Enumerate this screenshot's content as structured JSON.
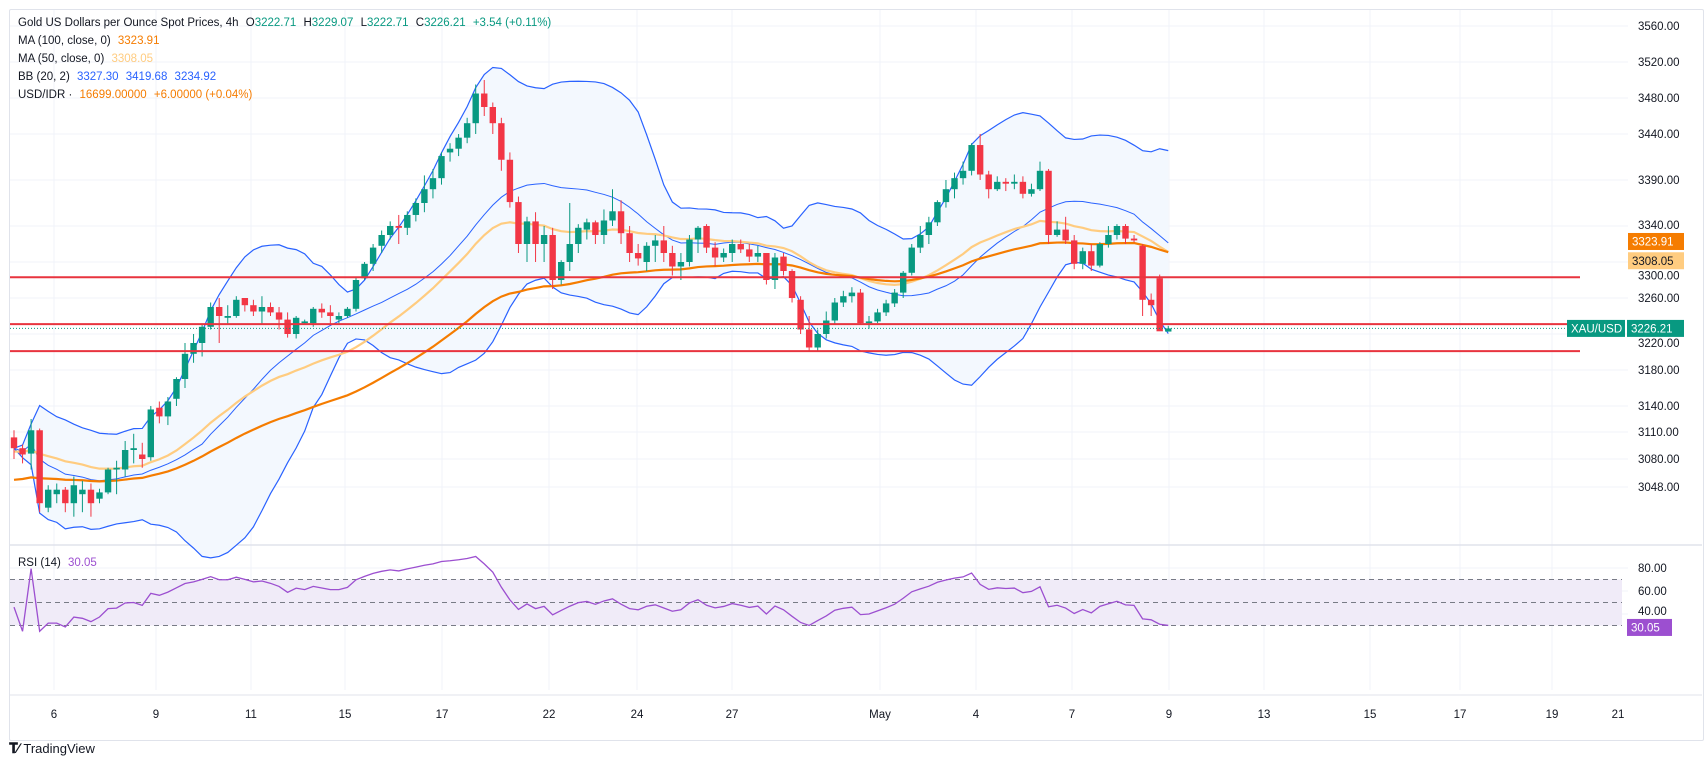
{
  "header": {
    "symbol_title": "Gold US Dollars per Ounce Spot Prices, 4h",
    "open_label": "O",
    "open": "3222.71",
    "high_label": "H",
    "high": "3229.07",
    "low_label": "L",
    "low": "3222.71",
    "close_label": "C",
    "close": "3226.21",
    "change": "+3.54 (+0.11%)"
  },
  "indicators": {
    "ma100": {
      "label": "MA (100, close, 0)",
      "value": "3323.91",
      "color": "#f57c00"
    },
    "ma50": {
      "label": "MA (50, close, 0)",
      "value": "3308.05",
      "color": "#ffcc80"
    },
    "bb": {
      "label": "BB (20, 2)",
      "basis": "3327.30",
      "upper": "3419.68",
      "lower": "3234.92",
      "color": "#2962ff"
    },
    "usdidr": {
      "label": "USD/IDR ·",
      "value": "16699.00000",
      "change": "+6.00000 (+0.04%)",
      "color": "#f57c00"
    },
    "rsi": {
      "label": "RSI (14)",
      "value": "30.05",
      "color": "#9c4fd0"
    }
  },
  "price_labels": {
    "ma100": "3323.91",
    "ma50": "3308.05",
    "symbol_tag": "XAU/USD",
    "last_price": "3226.21",
    "rsi_last": "30.05"
  },
  "colors": {
    "up": "#089981",
    "down": "#f23645",
    "ma100": "#f57c00",
    "ma50": "#ffcc80",
    "bb": "#2962ff",
    "bb_fill": "#f3f8fe",
    "rsi": "#9c4fd0",
    "rsi_band": "#f0ebf8",
    "hline": "#e8343f"
  },
  "footer": {
    "brand": "TradingView"
  },
  "chart_data": [
    {
      "type": "candlestick",
      "title": "Gold US Dollars per Ounce Spot Prices, 4h",
      "y_ticks": [
        3560,
        3520,
        3480,
        3440,
        3390,
        3340,
        3300,
        3260,
        3220,
        3180,
        3140,
        3110,
        3080,
        3048
      ],
      "y_tick_labels": [
        "3560.00",
        "3520.00",
        "3480.00",
        "3440.00",
        "3390.00",
        "3340.00",
        "3300.00",
        "3260.00",
        "3220.00",
        "3180.00",
        "3140.00",
        "3110.00",
        "3080.00",
        "3048.00"
      ],
      "x_tick_labels": [
        "6",
        "9",
        "11",
        "15",
        "17",
        "22",
        "24",
        "27",
        "May",
        "4",
        "7",
        "9",
        "13",
        "15",
        "17",
        "19",
        "21"
      ],
      "horizontal_lines": [
        3283,
        3231,
        3201
      ],
      "ohlc": [
        [
          3104,
          3112,
          3080,
          3092
        ],
        [
          3092,
          3096,
          3075,
          3085
        ],
        [
          3086,
          3125,
          3068,
          3112
        ],
        [
          3112,
          3114,
          3020,
          3030
        ],
        [
          3025,
          3050,
          3020,
          3045
        ],
        [
          3040,
          3052,
          3030,
          3045
        ],
        [
          3045,
          3048,
          3020,
          3030
        ],
        [
          3030,
          3060,
          3015,
          3050
        ],
        [
          3040,
          3055,
          3020,
          3045
        ],
        [
          3045,
          3052,
          3015,
          3030
        ],
        [
          3035,
          3046,
          3030,
          3042
        ],
        [
          3042,
          3070,
          3040,
          3068
        ],
        [
          3068,
          3078,
          3040,
          3070
        ],
        [
          3068,
          3100,
          3060,
          3090
        ],
        [
          3090,
          3108,
          3075,
          3092
        ],
        [
          3085,
          3098,
          3070,
          3080
        ],
        [
          3082,
          3140,
          3078,
          3136
        ],
        [
          3138,
          3145,
          3120,
          3128
        ],
        [
          3128,
          3150,
          3118,
          3145
        ],
        [
          3148,
          3172,
          3140,
          3170
        ],
        [
          3170,
          3210,
          3160,
          3198
        ],
        [
          3198,
          3220,
          3188,
          3210
        ],
        [
          3210,
          3230,
          3195,
          3228
        ],
        [
          3228,
          3255,
          3225,
          3250
        ],
        [
          3250,
          3260,
          3210,
          3240
        ],
        [
          3238,
          3252,
          3230,
          3240
        ],
        [
          3240,
          3262,
          3238,
          3258
        ],
        [
          3260,
          3258,
          3245,
          3252
        ],
        [
          3252,
          3258,
          3240,
          3245
        ],
        [
          3245,
          3262,
          3230,
          3250
        ],
        [
          3250,
          3255,
          3240,
          3244
        ],
        [
          3244,
          3250,
          3225,
          3236
        ],
        [
          3236,
          3244,
          3216,
          3220
        ],
        [
          3220,
          3240,
          3215,
          3238
        ],
        [
          3232,
          3236,
          3230,
          3234
        ],
        [
          3232,
          3250,
          3228,
          3248
        ],
        [
          3248,
          3254,
          3238,
          3244
        ],
        [
          3244,
          3252,
          3230,
          3240
        ],
        [
          3236,
          3244,
          3232,
          3240
        ],
        [
          3240,
          3250,
          3238,
          3248
        ],
        [
          3248,
          3283,
          3245,
          3280
        ],
        [
          3282,
          3300,
          3280,
          3298
        ],
        [
          3298,
          3320,
          3290,
          3316
        ],
        [
          3318,
          3335,
          3310,
          3330
        ],
        [
          3330,
          3345,
          3325,
          3340
        ],
        [
          3340,
          3352,
          3320,
          3338
        ],
        [
          3338,
          3356,
          3330,
          3352
        ],
        [
          3352,
          3370,
          3345,
          3365
        ],
        [
          3365,
          3395,
          3355,
          3380
        ],
        [
          3380,
          3402,
          3370,
          3392
        ],
        [
          3392,
          3420,
          3385,
          3416
        ],
        [
          3420,
          3430,
          3410,
          3424
        ],
        [
          3424,
          3440,
          3416,
          3436
        ],
        [
          3436,
          3458,
          3430,
          3452
        ],
        [
          3452,
          3495,
          3440,
          3485
        ],
        [
          3485,
          3500,
          3460,
          3470
        ],
        [
          3470,
          3475,
          3440,
          3452
        ],
        [
          3452,
          3458,
          3400,
          3412
        ],
        [
          3412,
          3420,
          3360,
          3366
        ],
        [
          3366,
          3372,
          3310,
          3320
        ],
        [
          3320,
          3350,
          3300,
          3345
        ],
        [
          3345,
          3355,
          3300,
          3320
        ],
        [
          3320,
          3340,
          3300,
          3330
        ],
        [
          3330,
          3338,
          3270,
          3280
        ],
        [
          3280,
          3302,
          3275,
          3300
        ],
        [
          3300,
          3365,
          3290,
          3320
        ],
        [
          3320,
          3342,
          3310,
          3338
        ],
        [
          3336,
          3348,
          3325,
          3344
        ],
        [
          3344,
          3346,
          3320,
          3330
        ],
        [
          3330,
          3358,
          3320,
          3346
        ],
        [
          3346,
          3380,
          3340,
          3356
        ],
        [
          3356,
          3368,
          3320,
          3332
        ],
        [
          3332,
          3340,
          3300,
          3310
        ],
        [
          3310,
          3320,
          3296,
          3304
        ],
        [
          3300,
          3322,
          3290,
          3318
        ],
        [
          3318,
          3330,
          3300,
          3324
        ],
        [
          3324,
          3340,
          3300,
          3310
        ],
        [
          3310,
          3318,
          3285,
          3295
        ],
        [
          3295,
          3310,
          3280,
          3300
        ],
        [
          3300,
          3330,
          3295,
          3325
        ],
        [
          3325,
          3340,
          3310,
          3338
        ],
        [
          3340,
          3342,
          3310,
          3316
        ],
        [
          3316,
          3322,
          3295,
          3305
        ],
        [
          3305,
          3315,
          3300,
          3310
        ],
        [
          3310,
          3325,
          3300,
          3320
        ],
        [
          3320,
          3325,
          3310,
          3314
        ],
        [
          3314,
          3320,
          3300,
          3306
        ],
        [
          3306,
          3318,
          3300,
          3310
        ],
        [
          3310,
          3310,
          3275,
          3280
        ],
        [
          3280,
          3310,
          3270,
          3305
        ],
        [
          3306,
          3310,
          3285,
          3290
        ],
        [
          3290,
          3292,
          3255,
          3260
        ],
        [
          3258,
          3262,
          3220,
          3225
        ],
        [
          3225,
          3240,
          3200,
          3205
        ],
        [
          3205,
          3225,
          3200,
          3220
        ],
        [
          3220,
          3245,
          3215,
          3235
        ],
        [
          3235,
          3260,
          3230,
          3255
        ],
        [
          3255,
          3268,
          3250,
          3262
        ],
        [
          3262,
          3272,
          3255,
          3266
        ],
        [
          3266,
          3270,
          3230,
          3232
        ],
        [
          3232,
          3240,
          3226,
          3234
        ],
        [
          3234,
          3248,
          3232,
          3244
        ],
        [
          3244,
          3258,
          3240,
          3254
        ],
        [
          3254,
          3270,
          3250,
          3266
        ],
        [
          3266,
          3290,
          3260,
          3288
        ],
        [
          3288,
          3320,
          3285,
          3316
        ],
        [
          3316,
          3340,
          3310,
          3330
        ],
        [
          3330,
          3350,
          3320,
          3344
        ],
        [
          3344,
          3368,
          3340,
          3366
        ],
        [
          3366,
          3390,
          3360,
          3380
        ],
        [
          3380,
          3398,
          3370,
          3392
        ],
        [
          3392,
          3410,
          3385,
          3400
        ],
        [
          3400,
          3430,
          3395,
          3428
        ],
        [
          3428,
          3440,
          3390,
          3396
        ],
        [
          3396,
          3400,
          3370,
          3380
        ],
        [
          3380,
          3394,
          3378,
          3388
        ],
        [
          3388,
          3392,
          3378,
          3386
        ],
        [
          3386,
          3396,
          3380,
          3388
        ],
        [
          3388,
          3394,
          3370,
          3375
        ],
        [
          3375,
          3386,
          3372,
          3380
        ],
        [
          3380,
          3410,
          3378,
          3400
        ],
        [
          3400,
          3402,
          3320,
          3330
        ],
        [
          3330,
          3345,
          3328,
          3336
        ],
        [
          3336,
          3350,
          3320,
          3324
        ],
        [
          3324,
          3330,
          3292,
          3298
        ],
        [
          3298,
          3316,
          3292,
          3312
        ],
        [
          3312,
          3320,
          3290,
          3296
        ],
        [
          3296,
          3322,
          3294,
          3320
        ],
        [
          3320,
          3340,
          3316,
          3330
        ],
        [
          3330,
          3342,
          3325,
          3340
        ],
        [
          3340,
          3342,
          3320,
          3326
        ],
        [
          3326,
          3330,
          3322,
          3324
        ],
        [
          3318,
          3320,
          3240,
          3258
        ],
        [
          3258,
          3265,
          3240,
          3252
        ],
        [
          3282,
          3286,
          3225,
          3223
        ],
        [
          3222.71,
          3229.07,
          3222.71,
          3226.21
        ]
      ]
    },
    {
      "type": "line",
      "title": "RSI (14)",
      "y_ticks": [
        80,
        60,
        40
      ],
      "y_tick_labels": [
        "80.00",
        "60.00",
        "40.00"
      ],
      "levels": [
        70,
        50,
        30
      ],
      "last_value": 30.05
    }
  ]
}
